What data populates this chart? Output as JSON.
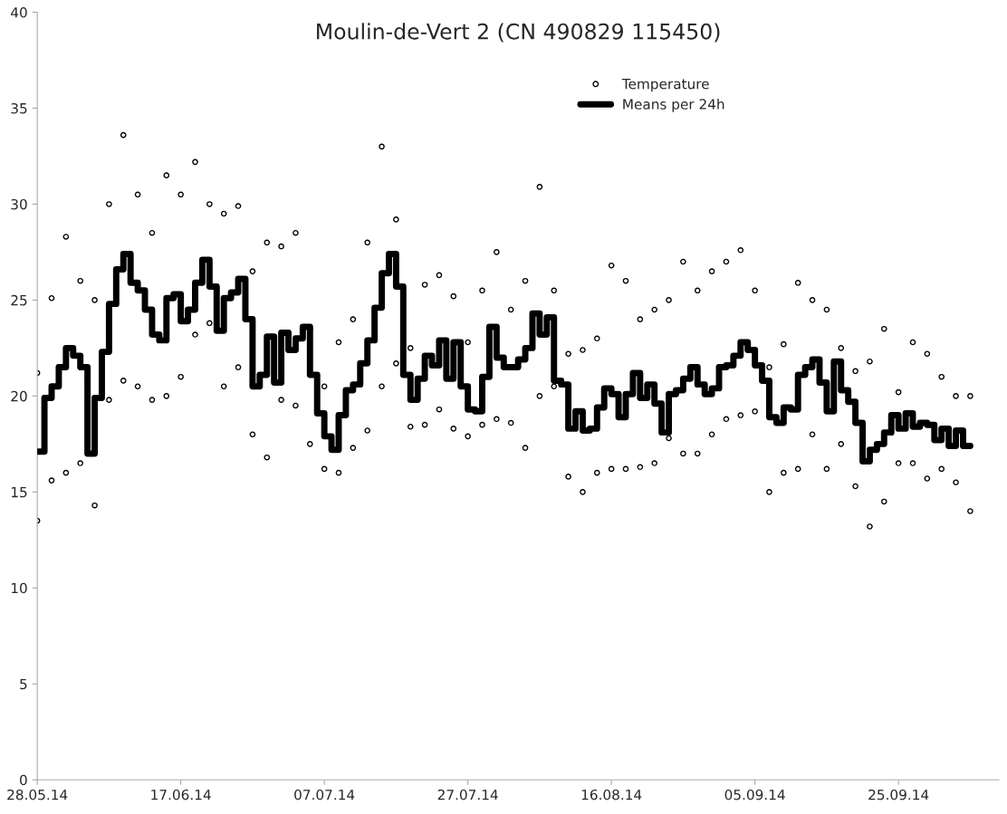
{
  "chart_data": {
    "type": "scatter",
    "title": "Moulin-de-Vert 2 (CN 490829 115450)",
    "xlim": [
      "2014-05-28",
      "2014-10-09"
    ],
    "xticks": [
      {
        "value": "2014-05-28",
        "label": "28.05.14"
      },
      {
        "value": "2014-06-17",
        "label": "17.06.14"
      },
      {
        "value": "2014-07-07",
        "label": "07.07.14"
      },
      {
        "value": "2014-07-27",
        "label": "27.07.14"
      },
      {
        "value": "2014-08-16",
        "label": "16.08.14"
      },
      {
        "value": "2014-09-05",
        "label": "05.09.14"
      },
      {
        "value": "2014-09-25",
        "label": "25.09.14"
      }
    ],
    "ylim": [
      0,
      40
    ],
    "yticks": [
      0,
      5,
      10,
      15,
      20,
      25,
      30,
      35,
      40
    ],
    "grid": false,
    "legend": "top",
    "series": [
      {
        "name": "Temperature",
        "marker": "circle",
        "color": "#000000",
        "x": [
          "2014-05-28",
          "2014-05-28",
          "2014-05-30",
          "2014-05-30",
          "2014-06-01",
          "2014-06-01",
          "2014-06-03",
          "2014-06-03",
          "2014-06-05",
          "2014-06-05",
          "2014-06-07",
          "2014-06-07",
          "2014-06-09",
          "2014-06-09",
          "2014-06-11",
          "2014-06-11",
          "2014-06-13",
          "2014-06-13",
          "2014-06-15",
          "2014-06-15",
          "2014-06-17",
          "2014-06-17",
          "2014-06-19",
          "2014-06-19",
          "2014-06-21",
          "2014-06-21",
          "2014-06-23",
          "2014-06-23",
          "2014-06-25",
          "2014-06-25",
          "2014-06-27",
          "2014-06-27",
          "2014-06-29",
          "2014-06-29",
          "2014-07-01",
          "2014-07-01",
          "2014-07-03",
          "2014-07-03",
          "2014-07-05",
          "2014-07-05",
          "2014-07-07",
          "2014-07-07",
          "2014-07-09",
          "2014-07-09",
          "2014-07-11",
          "2014-07-11",
          "2014-07-13",
          "2014-07-13",
          "2014-07-15",
          "2014-07-15",
          "2014-07-17",
          "2014-07-17",
          "2014-07-19",
          "2014-07-19",
          "2014-07-21",
          "2014-07-21",
          "2014-07-23",
          "2014-07-23",
          "2014-07-25",
          "2014-07-25",
          "2014-07-27",
          "2014-07-27",
          "2014-07-29",
          "2014-07-29",
          "2014-07-31",
          "2014-07-31",
          "2014-08-02",
          "2014-08-02",
          "2014-08-04",
          "2014-08-04",
          "2014-08-06",
          "2014-08-06",
          "2014-08-08",
          "2014-08-08",
          "2014-08-10",
          "2014-08-10",
          "2014-08-12",
          "2014-08-12",
          "2014-08-14",
          "2014-08-14",
          "2014-08-16",
          "2014-08-16",
          "2014-08-18",
          "2014-08-18",
          "2014-08-20",
          "2014-08-20",
          "2014-08-22",
          "2014-08-22",
          "2014-08-24",
          "2014-08-24",
          "2014-08-26",
          "2014-08-26",
          "2014-08-28",
          "2014-08-28",
          "2014-08-30",
          "2014-08-30",
          "2014-09-01",
          "2014-09-01",
          "2014-09-03",
          "2014-09-03",
          "2014-09-05",
          "2014-09-05",
          "2014-09-07",
          "2014-09-07",
          "2014-09-09",
          "2014-09-09",
          "2014-09-11",
          "2014-09-11",
          "2014-09-13",
          "2014-09-13",
          "2014-09-15",
          "2014-09-15",
          "2014-09-17",
          "2014-09-17",
          "2014-09-19",
          "2014-09-19",
          "2014-09-21",
          "2014-09-21",
          "2014-09-23",
          "2014-09-23",
          "2014-09-25",
          "2014-09-25",
          "2014-09-27",
          "2014-09-27",
          "2014-09-29",
          "2014-09-29",
          "2014-10-01",
          "2014-10-01",
          "2014-10-03",
          "2014-10-03",
          "2014-10-05",
          "2014-10-05"
        ],
        "values": [
          13.5,
          21.2,
          15.6,
          25.1,
          16.0,
          28.3,
          16.5,
          26.0,
          14.3,
          25.0,
          19.8,
          30.0,
          20.8,
          33.6,
          20.5,
          30.5,
          19.8,
          28.5,
          20.0,
          31.5,
          21.0,
          30.5,
          23.2,
          32.2,
          23.8,
          30.0,
          20.5,
          29.5,
          21.5,
          29.9,
          18.0,
          26.5,
          16.8,
          28.0,
          19.8,
          27.8,
          19.5,
          28.5,
          17.5,
          23.5,
          16.2,
          20.5,
          16.0,
          22.8,
          17.3,
          24.0,
          18.2,
          28.0,
          20.5,
          33.0,
          21.7,
          29.2,
          18.4,
          22.5,
          18.5,
          25.8,
          19.3,
          26.3,
          18.3,
          25.2,
          17.9,
          22.8,
          18.5,
          25.5,
          18.8,
          27.5,
          18.6,
          24.5,
          17.3,
          26.0,
          20.0,
          30.9,
          20.5,
          25.5,
          15.8,
          22.2,
          15.0,
          22.4,
          16.0,
          23.0,
          16.2,
          26.8,
          16.2,
          26.0,
          16.3,
          24.0,
          16.5,
          24.5,
          17.8,
          25.0,
          17.0,
          27.0,
          17.0,
          25.5,
          18.0,
          26.5,
          18.8,
          27.0,
          19.0,
          27.6,
          19.2,
          25.5,
          15.0,
          21.5,
          16.0,
          22.7,
          16.2,
          25.9,
          18.0,
          25.0,
          16.2,
          24.5,
          17.5,
          22.5,
          15.3,
          21.3,
          13.2,
          21.8,
          14.5,
          23.5,
          16.5,
          20.2,
          16.5,
          22.8,
          15.7,
          22.2,
          16.2,
          21.0,
          15.5,
          20.0,
          14.0,
          20.0
        ]
      },
      {
        "name": "Means per 24h",
        "type": "step",
        "marker": "none",
        "line_style": "solid",
        "color": "#000000",
        "x": [
          "2014-05-28",
          "2014-05-29",
          "2014-05-30",
          "2014-05-31",
          "2014-06-01",
          "2014-06-02",
          "2014-06-03",
          "2014-06-04",
          "2014-06-05",
          "2014-06-06",
          "2014-06-07",
          "2014-06-08",
          "2014-06-09",
          "2014-06-10",
          "2014-06-11",
          "2014-06-12",
          "2014-06-13",
          "2014-06-14",
          "2014-06-15",
          "2014-06-16",
          "2014-06-17",
          "2014-06-18",
          "2014-06-19",
          "2014-06-20",
          "2014-06-21",
          "2014-06-22",
          "2014-06-23",
          "2014-06-24",
          "2014-06-25",
          "2014-06-26",
          "2014-06-27",
          "2014-06-28",
          "2014-06-29",
          "2014-06-30",
          "2014-07-01",
          "2014-07-02",
          "2014-07-03",
          "2014-07-04",
          "2014-07-05",
          "2014-07-06",
          "2014-07-07",
          "2014-07-08",
          "2014-07-09",
          "2014-07-10",
          "2014-07-11",
          "2014-07-12",
          "2014-07-13",
          "2014-07-14",
          "2014-07-15",
          "2014-07-16",
          "2014-07-17",
          "2014-07-18",
          "2014-07-19",
          "2014-07-20",
          "2014-07-21",
          "2014-07-22",
          "2014-07-23",
          "2014-07-24",
          "2014-07-25",
          "2014-07-26",
          "2014-07-27",
          "2014-07-28",
          "2014-07-29",
          "2014-07-30",
          "2014-07-31",
          "2014-08-01",
          "2014-08-02",
          "2014-08-03",
          "2014-08-04",
          "2014-08-05",
          "2014-08-06",
          "2014-08-07",
          "2014-08-08",
          "2014-08-09",
          "2014-08-10",
          "2014-08-11",
          "2014-08-12",
          "2014-08-13",
          "2014-08-14",
          "2014-08-15",
          "2014-08-16",
          "2014-08-17",
          "2014-08-18",
          "2014-08-19",
          "2014-08-20",
          "2014-08-21",
          "2014-08-22",
          "2014-08-23",
          "2014-08-24",
          "2014-08-25",
          "2014-08-26",
          "2014-08-27",
          "2014-08-28",
          "2014-08-29",
          "2014-08-30",
          "2014-08-31",
          "2014-09-01",
          "2014-09-02",
          "2014-09-03",
          "2014-09-04",
          "2014-09-05",
          "2014-09-06",
          "2014-09-07",
          "2014-09-08",
          "2014-09-09",
          "2014-09-10",
          "2014-09-11",
          "2014-09-12",
          "2014-09-13",
          "2014-09-14",
          "2014-09-15",
          "2014-09-16",
          "2014-09-17",
          "2014-09-18",
          "2014-09-19",
          "2014-09-20",
          "2014-09-21",
          "2014-09-22",
          "2014-09-23",
          "2014-09-24",
          "2014-09-25",
          "2014-09-26",
          "2014-09-27",
          "2014-09-28",
          "2014-09-29",
          "2014-09-30",
          "2014-10-01",
          "2014-10-02",
          "2014-10-03",
          "2014-10-04",
          "2014-10-05"
        ],
        "values": [
          17.1,
          19.9,
          20.5,
          21.5,
          22.5,
          22.1,
          21.5,
          17.0,
          19.9,
          22.3,
          24.8,
          26.6,
          27.4,
          25.9,
          25.5,
          24.5,
          23.2,
          22.9,
          25.1,
          25.3,
          23.9,
          24.5,
          25.9,
          27.1,
          25.7,
          23.4,
          25.1,
          25.4,
          26.1,
          24.0,
          20.5,
          21.1,
          23.1,
          20.7,
          23.3,
          22.4,
          23.0,
          23.6,
          21.1,
          19.1,
          17.9,
          17.2,
          19.0,
          20.3,
          20.6,
          21.7,
          22.9,
          24.6,
          26.4,
          27.4,
          25.7,
          21.1,
          19.8,
          20.9,
          22.1,
          21.6,
          22.9,
          20.9,
          22.8,
          20.5,
          19.3,
          19.2,
          21.0,
          23.6,
          22.0,
          21.5,
          21.5,
          21.9,
          22.5,
          24.3,
          23.2,
          24.1,
          20.8,
          20.6,
          18.3,
          19.2,
          18.2,
          18.3,
          19.4,
          20.4,
          20.1,
          18.9,
          20.1,
          21.2,
          19.9,
          20.6,
          19.6,
          18.1,
          20.1,
          20.3,
          20.9,
          21.5,
          20.6,
          20.1,
          20.4,
          21.5,
          21.6,
          22.1,
          22.8,
          22.4,
          21.6,
          20.8,
          18.9,
          18.6,
          19.4,
          19.3,
          21.1,
          21.5,
          21.9,
          20.7,
          19.2,
          21.8,
          20.3,
          19.7,
          18.6,
          16.6,
          17.2,
          17.5,
          18.1,
          19.0,
          18.3,
          19.1,
          18.4,
          18.6,
          18.5,
          17.7,
          18.3,
          17.4,
          18.2,
          17.4,
          17.4
        ]
      }
    ]
  }
}
